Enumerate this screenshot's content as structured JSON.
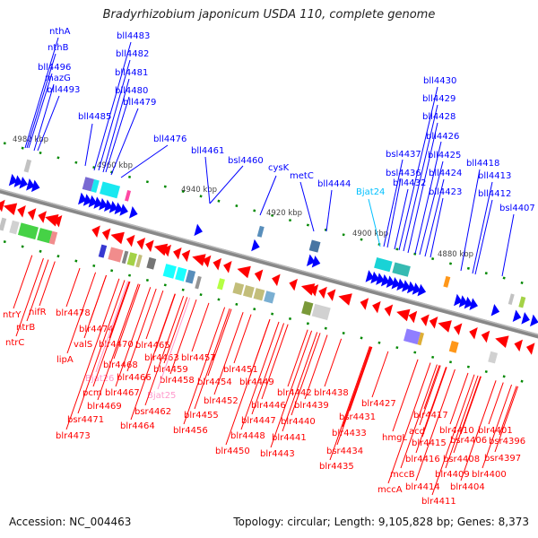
{
  "title": "Bradyrhizobium japonicum USDA 110, complete genome",
  "footer": {
    "accession": "Accession: NC_004463",
    "summary": "Topology: circular; Length: 9,105,828 bp; Genes: 8,373"
  },
  "colors": {
    "forward_strand": "#0000ff",
    "reverse_strand": "#ff0000",
    "rna_forward": "#00c0ff",
    "rna_reverse": "#ff99cc",
    "backbone": "#888888",
    "tick": "#008800"
  },
  "scale_labels": [
    "4980 kbp",
    "4960 kbp",
    "4940 kbp",
    "4920 kbp",
    "4900 kbp",
    "4880 kbp"
  ],
  "forward_genes": [
    "nthA",
    "nthB",
    "bll4496",
    "mazG",
    "bll4493",
    "bll4485",
    "bll4483",
    "bll4482",
    "bll4481",
    "bll4480",
    "bll4479",
    "bll4476",
    "bll4461",
    "bsl4460",
    "cysK",
    "metC",
    "bll4444",
    "Bjat24",
    "bsl4437",
    "bsl4436",
    "bll4432",
    "bll4430",
    "bll4429",
    "bll4428",
    "bll4426",
    "bll4425",
    "bll4424",
    "bll4423",
    "bll4418",
    "bll4413",
    "bll4412",
    "bsl4407"
  ],
  "reverse_genes": [
    "ntrY",
    "nifR",
    "ntrB",
    "ntrC",
    "blr4478",
    "blr4474",
    "valS",
    "blr4470",
    "lipA",
    "blr4465",
    "blr4463",
    "blr4457",
    "blr4468",
    "blr4459",
    "blr4458",
    "blr4466",
    "Bjat26",
    "blr4451",
    "pcm",
    "blr4467",
    "Bjat25",
    "blr4454",
    "blr4449",
    "blr4469",
    "blr4452",
    "bsr4462",
    "blr4455",
    "bsr4471",
    "blr4464",
    "blr4456",
    "blr4473",
    "blr4448",
    "blr4450",
    "blr4442",
    "blr4438",
    "blr4446",
    "blr4439",
    "blr4447",
    "blr4440",
    "bsr4431",
    "blr4427",
    "blr4441",
    "blr4433",
    "bsr4434",
    "blr4443",
    "blr4435",
    "hmgL",
    "blr4417",
    "acd",
    "blr4410",
    "blr4401",
    "blr4415",
    "bsr4406",
    "bsr4396",
    "blr4416",
    "bsr4408",
    "bsr4397",
    "mccB",
    "blr4409",
    "blr4400",
    "mccA",
    "blr4414",
    "blr4404",
    "blr4411"
  ]
}
